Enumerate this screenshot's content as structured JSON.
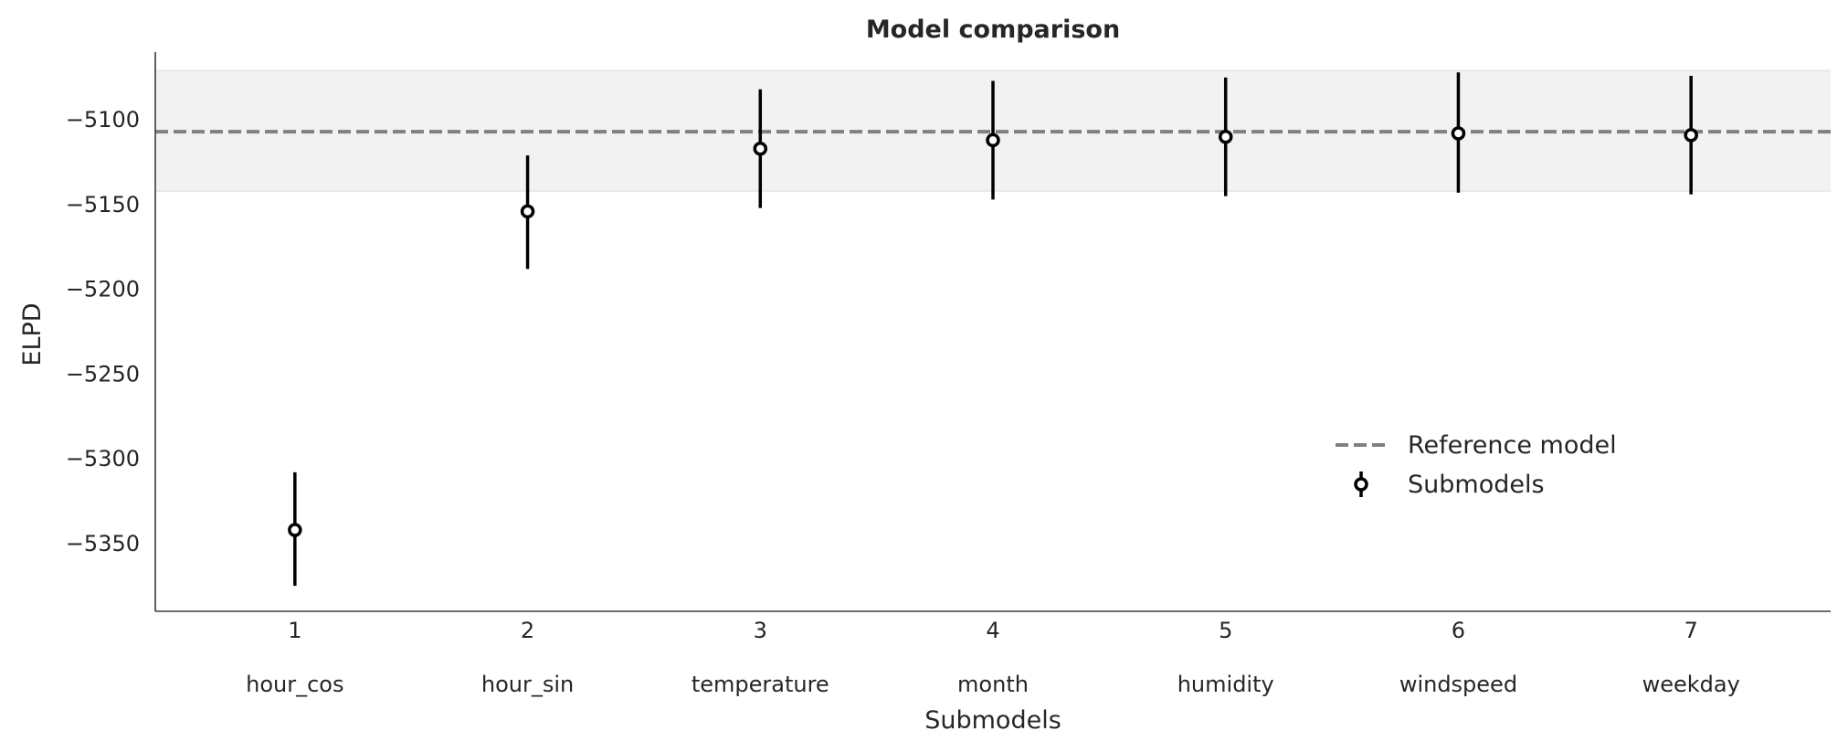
{
  "chart_data": {
    "type": "scatter",
    "title": "Model comparison",
    "xlabel": "Submodels",
    "ylabel": "ELPD",
    "ylim": [
      -5390,
      -5060
    ],
    "xlim": [
      0.4,
      7.6
    ],
    "yticks": [
      -5100,
      -5150,
      -5200,
      -5250,
      -5300,
      -5350
    ],
    "ytick_labels": [
      "−5100",
      "−5150",
      "−5200",
      "−5250",
      "−5300",
      "−5350"
    ],
    "grid": false,
    "legend_position": "center-right",
    "reference": {
      "name": "Reference model",
      "value": -5107,
      "band": [
        -5142,
        -5071
      ],
      "color": "#808080"
    },
    "series": [
      {
        "name": "Submodels",
        "color": "#000000",
        "x": [
          1,
          2,
          3,
          4,
          5,
          6,
          7
        ],
        "x_tick_labels": [
          "1",
          "2",
          "3",
          "4",
          "5",
          "6",
          "7"
        ],
        "x_names": [
          "hour_cos",
          "hour_sin",
          "temperature",
          "month",
          "humidity",
          "windspeed",
          "weekday"
        ],
        "y": [
          -5342,
          -5154,
          -5117,
          -5112,
          -5110,
          -5108,
          -5109
        ],
        "y_lower": [
          -5375,
          -5188,
          -5152,
          -5147,
          -5145,
          -5143,
          -5144
        ],
        "y_upper": [
          -5308,
          -5121,
          -5082,
          -5077,
          -5075,
          -5072,
          -5074
        ]
      }
    ]
  }
}
